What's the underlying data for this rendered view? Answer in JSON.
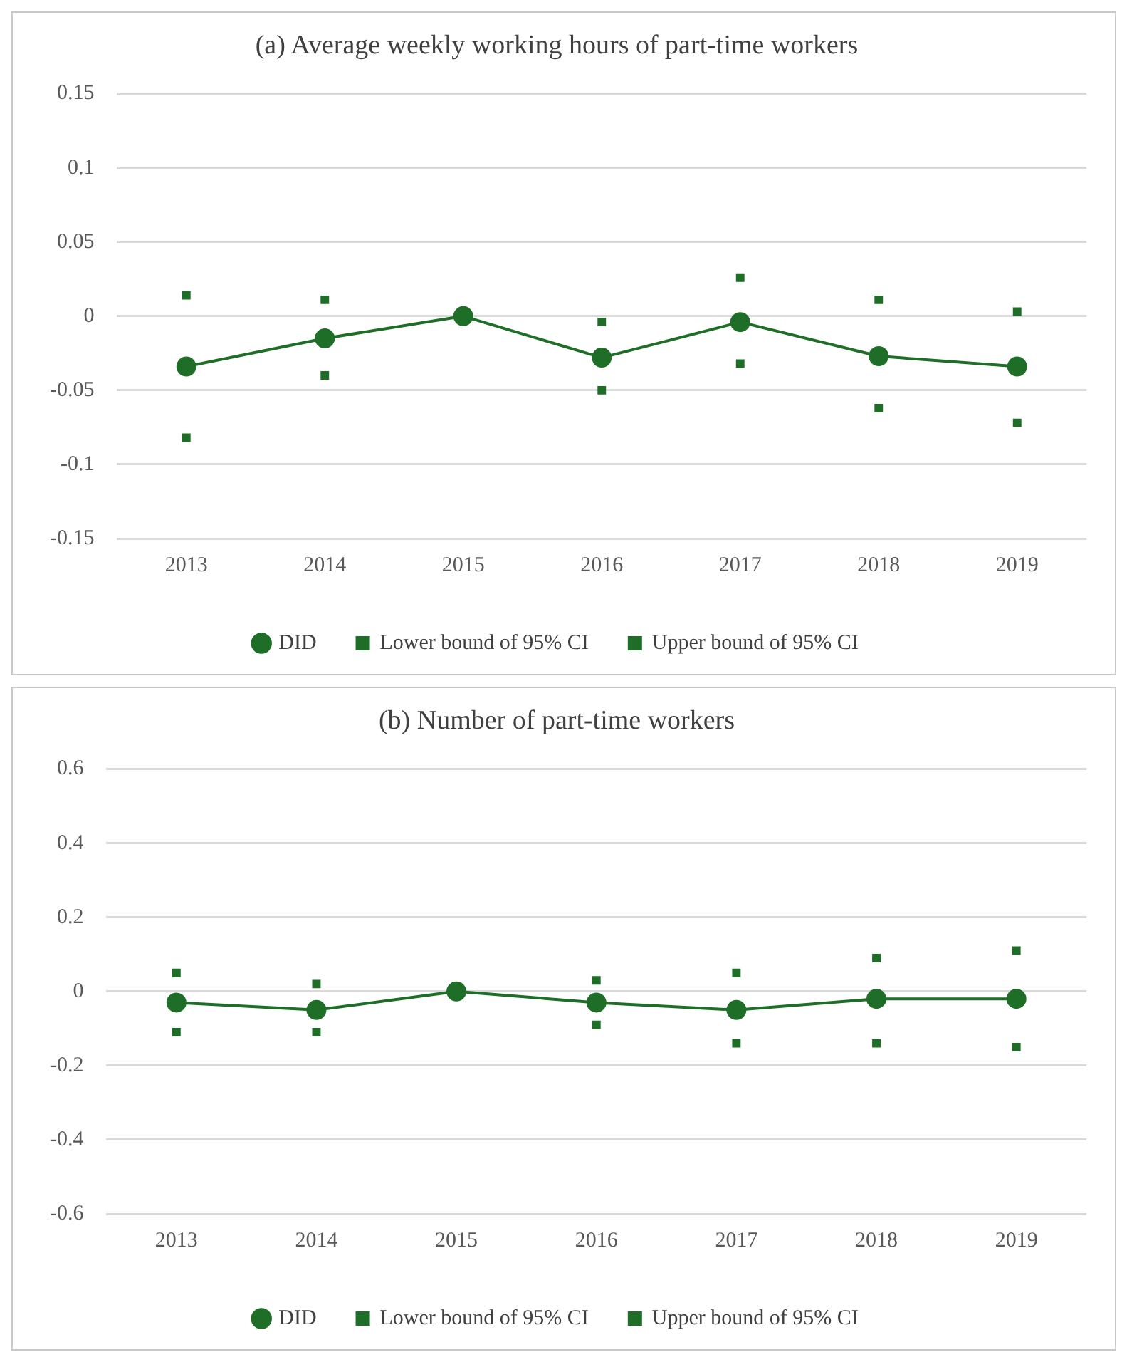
{
  "chart_data": [
    {
      "type": "line",
      "title": "(a) Average weekly working hours of part-time workers",
      "categories": [
        "2013",
        "2014",
        "2015",
        "2016",
        "2017",
        "2018",
        "2019"
      ],
      "series": [
        {
          "name": "DID",
          "color": "#1e6e28",
          "values": [
            -0.034,
            -0.015,
            0,
            -0.028,
            -0.004,
            -0.027,
            -0.034
          ]
        },
        {
          "name": "Lower bound of 95% CI",
          "type": "scatter",
          "marker": "square",
          "color": "#1e6e28",
          "values": [
            -0.082,
            -0.04,
            null,
            -0.05,
            -0.032,
            -0.062,
            -0.072
          ]
        },
        {
          "name": "Upper bound of 95% CI",
          "type": "scatter",
          "marker": "square",
          "color": "#1e6e28",
          "values": [
            0.014,
            0.011,
            null,
            -0.004,
            0.026,
            0.011,
            0.003
          ]
        }
      ],
      "ylim": [
        -0.15,
        0.15
      ],
      "yticks": [
        -0.15,
        -0.1,
        -0.05,
        0,
        0.05,
        0.1,
        0.15
      ],
      "grid": "y",
      "legend": "bottom",
      "marker": "circle"
    },
    {
      "type": "line",
      "title": "(b) Number of part-time workers",
      "categories": [
        "2013",
        "2014",
        "2015",
        "2016",
        "2017",
        "2018",
        "2019"
      ],
      "series": [
        {
          "name": "DID",
          "color": "#1e6e28",
          "values": [
            -0.03,
            -0.05,
            0,
            -0.03,
            -0.05,
            -0.02,
            -0.02
          ]
        },
        {
          "name": "Lower bound of 95% CI",
          "type": "scatter",
          "marker": "square",
          "color": "#1e6e28",
          "values": [
            -0.11,
            -0.11,
            null,
            -0.09,
            -0.14,
            -0.14,
            -0.15
          ]
        },
        {
          "name": "Upper bound of 95% CI",
          "type": "scatter",
          "marker": "square",
          "color": "#1e6e28",
          "values": [
            0.05,
            0.02,
            null,
            0.03,
            0.05,
            0.09,
            0.11
          ]
        }
      ],
      "ylim": [
        -0.6,
        0.6
      ],
      "yticks": [
        -0.6,
        -0.4,
        -0.2,
        0,
        0.2,
        0.4,
        0.6
      ],
      "grid": "y",
      "legend": "bottom",
      "marker": "circle"
    }
  ]
}
